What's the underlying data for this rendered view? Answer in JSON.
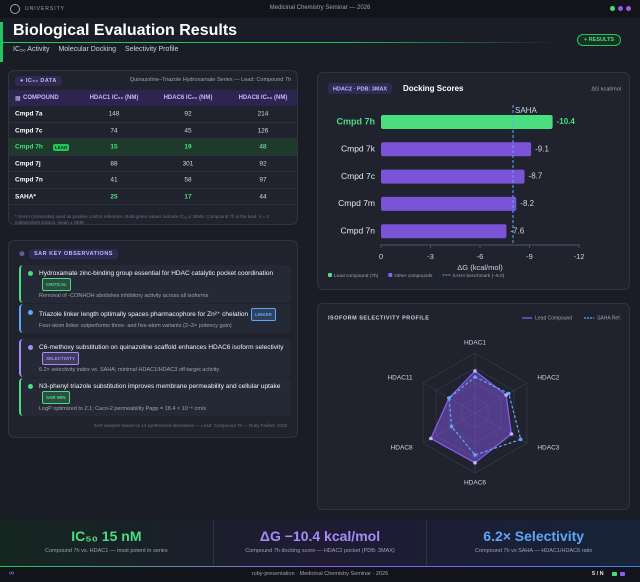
{
  "topbar": {
    "brand": "UNIVERSITY",
    "event": "Medicinal Chemistry Seminar — 2026"
  },
  "header": {
    "title": "Biological Evaluation Results",
    "tabs": [
      "IC₅₀ Activity",
      "Molecular Docking",
      "Selectivity Profile"
    ],
    "badge": "+ RESULTS"
  },
  "table": {
    "badge": "IC₅₀ DATA",
    "caption": "Quinazoline–Triazole Hydroxamate Series — Lead: Compound 7h",
    "columns": [
      "COMPOUND",
      "HDAC1 IC₅₀ (NM)",
      "HDAC6 IC₅₀ (NM)",
      "HDAC8 IC₅₀ (NM)"
    ],
    "rows": [
      {
        "compound": "Cmpd 7a",
        "values": [
          148,
          92,
          214
        ]
      },
      {
        "compound": "Cmpd 7c",
        "values": [
          74,
          45,
          126
        ]
      },
      {
        "compound": "Cmpd 7h",
        "tag": "LEAD",
        "lead": true,
        "values": [
          15,
          19,
          48
        ],
        "highlight": [
          true,
          true,
          false
        ]
      },
      {
        "compound": "Cmpd 7j",
        "values": [
          88,
          301,
          92
        ]
      },
      {
        "compound": "Cmpd 7n",
        "values": [
          41,
          58,
          97
        ]
      },
      {
        "compound": "SAHA*",
        "values": [
          25,
          17,
          44
        ],
        "highlight": [
          true,
          true,
          false
        ]
      }
    ],
    "footnote": "* SAHA (Vorinostat) used as positive control reference. Bold green values indicate IC₅₀ ≤ 30nM. Compound 7h is the lead. n = 3 independent assays, mean ± SEM."
  },
  "observations": {
    "badge": "SAR KEY OBSERVATIONS",
    "items": [
      {
        "title": "Hydroxamate zinc-binding group essential for HDAC catalytic pocket coordination",
        "tag": "CRITICAL",
        "detail": "Removal of -CONHOH abolishes inhibitory activity across all isoforms",
        "color": "#4ade80"
      },
      {
        "title": "Triazole linker length optimally spaces pharmacophore for Zn²⁺ chelation",
        "tag": "LINKER",
        "detail": "Four-atom linker outperforms three- and five-atom variants (2–3× potency gain)",
        "color": "#60a5fa"
      },
      {
        "title": "C6-methoxy substitution on quinazoline scaffold enhances HDAC6 isoform selectivity",
        "tag": "SELECTIVITY",
        "detail": "6.2× selectivity index vs. SAHA; minimal HDAC1/HDAC3 off-target activity",
        "color": "#a78bfa"
      },
      {
        "title": "N3-phenyl triazole substitution improves membrane permeability and cellular uptake",
        "tag": "SAR WIN",
        "detail": "LogP optimized to 2.1; Caco-2 permeability Papp = 18.4 × 10⁻⁶ cm/s",
        "color": "#4ade80"
      }
    ],
    "footer": "SAR analysis based on 14 synthesized derivatives — Lead: Compound 7h — Ruby Fadhel, 2026"
  },
  "chart_data": [
    {
      "type": "bar",
      "orientation": "horizontal",
      "badge": "HDAC2 · PDB: 3MAX",
      "title": "Docking Scores",
      "unit_label": "ΔG kcal/mol",
      "categories": [
        "Cmpd 7h",
        "Cmpd 7k",
        "Cmpd 7c",
        "Cmpd 7m",
        "Cmpd 7n"
      ],
      "values": [
        -10.4,
        -9.1,
        -8.7,
        -8.2,
        -7.6
      ],
      "colors": [
        "#4ade80",
        "#8b5cf6",
        "#8b5cf6",
        "#8b5cf6",
        "#8b5cf6"
      ],
      "xlim": [
        0,
        -12
      ],
      "xticks": [
        0,
        -3,
        -6,
        -9,
        -12
      ],
      "xlabel": "ΔG (kcal/mol)",
      "reference": {
        "label": "SAHA",
        "value": -8.0,
        "color": "#60a5fa"
      },
      "legend": [
        {
          "label": "Lead compound (7h)",
          "color": "#4ade80"
        },
        {
          "label": "Other compounds",
          "color": "#8b5cf6"
        },
        {
          "label": "SAHA benchmark (−8.0)",
          "color": "#60a5fa",
          "dashed": true
        }
      ]
    },
    {
      "type": "radar",
      "title": "ISOFORM SELECTIVITY PROFILE",
      "categories": [
        "HDAC1",
        "HDAC2",
        "HDAC3",
        "HDAC6",
        "HDAC8",
        "HDAC11"
      ],
      "rlim": [
        0,
        100
      ],
      "series": [
        {
          "name": "Lead Compound",
          "color": "#8b5cf6",
          "values": [
            70,
            60,
            70,
            83,
            85,
            50
          ]
        },
        {
          "name": "SAHA Ref.",
          "color": "#60a5fa",
          "dashed": true,
          "values": [
            60,
            65,
            88,
            70,
            45,
            50
          ]
        }
      ]
    }
  ],
  "kpis": [
    {
      "value": "IC₅₀ 15 nM",
      "caption": "Compound 7h vs. HDAC1 — most potent in series",
      "color": "#4ade80"
    },
    {
      "value": "ΔG −10.4 kcal/mol",
      "caption": "Compound 7h docking score — HDAC2 pocket (PDB: 3MAX)",
      "color": "#a78bfa"
    },
    {
      "value": "6.2× Selectivity",
      "caption": "Compound 7h vs SAHA — HDAC1/HDAC6 ratio",
      "color": "#60a5fa"
    }
  ],
  "footer": {
    "left": "ruby-presentation · Medicinal Chemistry Seminar · 2026",
    "page": "5 / N"
  }
}
